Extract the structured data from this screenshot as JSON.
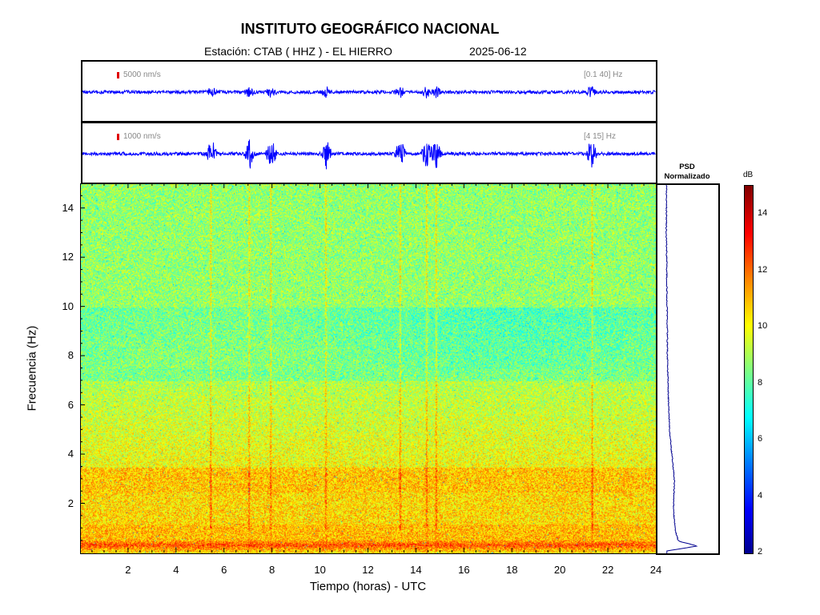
{
  "header": {
    "title": "INSTITUTO GEOGRÁFICO NACIONAL",
    "station_label": "Estación:  CTAB ( HHZ ) - EL HIERRO",
    "date": "2025-06-12"
  },
  "traces": [
    {
      "scale_label": "5000 nm/s",
      "band_label": "[0.1 40] Hz",
      "color": "#0000ff"
    },
    {
      "scale_label": "1000 nm/s",
      "band_label": "[4 15] Hz",
      "color": "#0000ff"
    }
  ],
  "psd": {
    "title_line1": "PSD",
    "title_line2": "Normalizado"
  },
  "colorbar": {
    "unit": "dB",
    "min": 2,
    "max": 15,
    "ticks": [
      "2",
      "4",
      "6",
      "8",
      "10",
      "12",
      "14"
    ]
  },
  "chart_data": {
    "type": "heatmap",
    "title": "INSTITUTO GEOGRÁFICO NACIONAL",
    "xlabel": "Tiempo (horas) - UTC",
    "ylabel": "Frecuencia  (Hz)",
    "xlim": [
      0,
      24
    ],
    "ylim": [
      0,
      15
    ],
    "x_ticks": [
      "2",
      "4",
      "6",
      "8",
      "10",
      "12",
      "14",
      "16",
      "18",
      "20",
      "22",
      "24"
    ],
    "y_ticks": [
      "2",
      "4",
      "6",
      "8",
      "10",
      "12",
      "14"
    ],
    "colorscale_range_db": [
      2,
      15
    ],
    "psd_normalized_profile": {
      "frequency_hz": [
        0.1,
        0.3,
        0.5,
        1,
        1.5,
        2,
        2.5,
        3,
        3.5,
        4,
        5,
        6,
        7,
        8,
        9,
        10,
        11,
        12,
        13,
        14,
        15
      ],
      "value": [
        0.05,
        1.0,
        0.4,
        0.3,
        0.27,
        0.25,
        0.27,
        0.28,
        0.24,
        0.2,
        0.13,
        0.1,
        0.08,
        0.06,
        0.06,
        0.05,
        0.04,
        0.04,
        0.03,
        0.03,
        0.03
      ]
    },
    "event_hours": [
      5.4,
      7.0,
      7.9,
      10.2,
      13.3,
      14.4,
      14.8,
      21.3
    ]
  }
}
